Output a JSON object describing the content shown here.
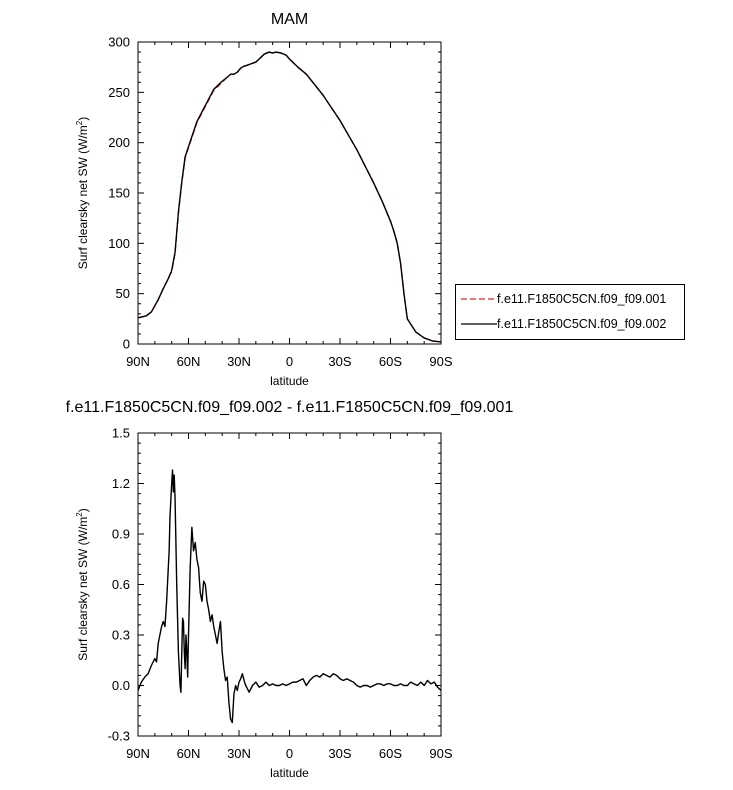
{
  "chart_data": [
    {
      "type": "line",
      "title": "MAM",
      "xlabel": "latitude",
      "ylabel": "Surf clearsky net SW (W/m²)",
      "ylabel_main": "Surf clearsky net SW (W/m",
      "ylabel_sup": "2",
      "ylabel_close": ")",
      "x_tick_labels": [
        "90N",
        "60N",
        "30N",
        "0",
        "30S",
        "60S",
        "90S"
      ],
      "x_tick_values": [
        90,
        60,
        30,
        0,
        -30,
        -60,
        -90
      ],
      "xlim": [
        90,
        -90
      ],
      "ylim": [
        0,
        300
      ],
      "y_ticks": [
        0,
        50,
        100,
        150,
        200,
        250,
        300
      ],
      "y_tick_labels": [
        "0",
        "50",
        "100",
        "150",
        "200",
        "250",
        "300"
      ],
      "grid": false,
      "legend_position": "right",
      "series": [
        {
          "name": "f.e11.F1850C5CN.f09_f09.001",
          "color": "#d62a2a",
          "style": "dashed",
          "x": [
            90,
            85,
            82,
            78,
            75,
            72,
            70,
            68,
            67,
            66,
            64,
            62,
            60,
            58,
            55,
            50,
            45,
            40,
            37,
            35,
            33,
            31,
            29,
            27,
            25,
            20,
            15,
            12,
            10,
            8,
            5,
            2,
            0,
            -5,
            -10,
            -20,
            -30,
            -40,
            -50,
            -55,
            -60,
            -62,
            -64,
            -66,
            -68,
            -70,
            -75,
            -80,
            -85,
            -90
          ],
          "y": [
            26,
            28,
            32,
            44,
            55,
            65,
            72,
            90,
            110,
            130,
            160,
            185,
            195,
            205,
            220,
            236,
            252,
            260,
            265,
            268,
            268,
            270,
            274,
            276,
            277,
            280,
            288,
            290,
            289,
            290,
            289,
            287,
            283,
            275,
            268,
            247,
            222,
            193,
            160,
            142,
            122,
            112,
            100,
            80,
            50,
            25,
            12,
            6,
            3,
            2
          ]
        },
        {
          "name": "f.e11.F1850C5CN.f09_f09.002",
          "color": "#000000",
          "style": "solid",
          "x": [
            90,
            85,
            82,
            78,
            75,
            72,
            70,
            68,
            67,
            66,
            64,
            62,
            60,
            58,
            55,
            50,
            45,
            40,
            37,
            35,
            33,
            31,
            29,
            27,
            25,
            20,
            15,
            12,
            10,
            8,
            5,
            2,
            0,
            -5,
            -10,
            -20,
            -30,
            -40,
            -50,
            -55,
            -60,
            -62,
            -64,
            -66,
            -68,
            -70,
            -75,
            -80,
            -85,
            -90
          ],
          "y": [
            26,
            28,
            32,
            44,
            55,
            65,
            73,
            91,
            111,
            131,
            161,
            186,
            196,
            206,
            221,
            237,
            253,
            261,
            265,
            268,
            268,
            270,
            274,
            276,
            277,
            280,
            288,
            290,
            289,
            290,
            289,
            287,
            283,
            275,
            268,
            247,
            222,
            193,
            160,
            142,
            122,
            112,
            100,
            80,
            50,
            25,
            12,
            6,
            3,
            2
          ]
        }
      ]
    },
    {
      "type": "line",
      "title": "f.e11.F1850C5CN.f09_f09.002 - f.e11.F1850C5CN.f09_f09.001",
      "xlabel": "latitude",
      "ylabel": "Surf clearsky net SW (W/m²)",
      "ylabel_main": "Surf clearsky net SW (W/m",
      "ylabel_sup": "2",
      "ylabel_close": ")",
      "x_tick_labels": [
        "90N",
        "60N",
        "30N",
        "0",
        "30S",
        "60S",
        "90S"
      ],
      "x_tick_values": [
        90,
        60,
        30,
        0,
        -30,
        -60,
        -90
      ],
      "xlim": [
        90,
        -90
      ],
      "ylim": [
        -0.3,
        1.5
      ],
      "y_ticks": [
        -0.3,
        0.0,
        0.3,
        0.6,
        0.9,
        1.2,
        1.5
      ],
      "y_tick_labels": [
        "-0.3",
        "0.0",
        "0.3",
        "0.6",
        "0.9",
        "1.2",
        "1.5"
      ],
      "grid": false,
      "series": [
        {
          "color": "#000000",
          "style": "solid",
          "x": [
            90,
            88,
            86,
            84,
            82,
            81,
            80,
            79,
            78,
            77,
            76,
            75,
            74,
            73,
            72,
            71.5,
            71,
            70.5,
            70,
            69.5,
            69,
            68.5,
            68,
            67,
            66,
            65,
            64.5,
            64,
            63.5,
            63,
            62.5,
            62,
            61.5,
            61,
            60.5,
            60,
            59,
            58,
            57,
            56,
            55,
            54,
            53,
            52,
            51,
            50,
            49,
            48,
            47,
            46,
            45,
            44,
            43,
            42,
            41,
            40,
            39,
            38,
            37,
            36,
            35,
            34,
            33,
            32,
            31,
            30,
            29,
            28,
            27,
            26,
            25,
            24,
            22,
            20,
            18,
            16,
            14,
            12,
            10,
            8,
            6,
            4,
            2,
            0,
            -2,
            -4,
            -6,
            -8,
            -10,
            -12,
            -14,
            -16,
            -18,
            -20,
            -22,
            -24,
            -26,
            -28,
            -30,
            -32,
            -34,
            -36,
            -38,
            -40,
            -42,
            -44,
            -46,
            -48,
            -50,
            -52,
            -54,
            -56,
            -58,
            -60,
            -62,
            -64,
            -66,
            -68,
            -70,
            -72,
            -74,
            -76,
            -78,
            -80,
            -82,
            -84,
            -86,
            -88,
            -90
          ],
          "y": [
            -0.03,
            0.02,
            0.05,
            0.07,
            0.12,
            0.14,
            0.16,
            0.14,
            0.25,
            0.3,
            0.35,
            0.38,
            0.35,
            0.5,
            0.7,
            0.8,
            1.0,
            1.1,
            1.2,
            1.28,
            1.15,
            1.25,
            1.12,
            0.6,
            0.2,
            0.0,
            -0.04,
            0.2,
            0.4,
            0.38,
            0.2,
            0.1,
            0.3,
            0.2,
            0.05,
            0.3,
            0.7,
            0.94,
            0.8,
            0.85,
            0.75,
            0.7,
            0.55,
            0.5,
            0.62,
            0.6,
            0.5,
            0.45,
            0.38,
            0.42,
            0.35,
            0.3,
            0.25,
            0.32,
            0.38,
            0.2,
            0.1,
            0.03,
            0.05,
            -0.1,
            -0.2,
            -0.22,
            -0.05,
            0.0,
            -0.03,
            0.02,
            0.04,
            0.07,
            0.03,
            0.0,
            -0.02,
            -0.04,
            0.0,
            0.02,
            -0.01,
            0.0,
            0.02,
            0.0,
            0.01,
            0.0,
            0.0,
            0.01,
            0.0,
            0.01,
            0.02,
            0.02,
            0.03,
            0.04,
            0.0,
            0.03,
            0.05,
            0.06,
            0.05,
            0.07,
            0.06,
            0.05,
            0.07,
            0.06,
            0.04,
            0.03,
            0.04,
            0.03,
            0.02,
            0.0,
            -0.01,
            0.0,
            0.0,
            -0.01,
            0.0,
            0.01,
            0.01,
            0.0,
            0.01,
            0.01,
            0.0,
            0.0,
            0.01,
            0.0,
            0.0,
            0.02,
            0.01,
            0.0,
            0.02,
            0.0,
            0.03,
            0.01,
            0.02,
            -0.01,
            -0.03
          ]
        }
      ]
    }
  ]
}
